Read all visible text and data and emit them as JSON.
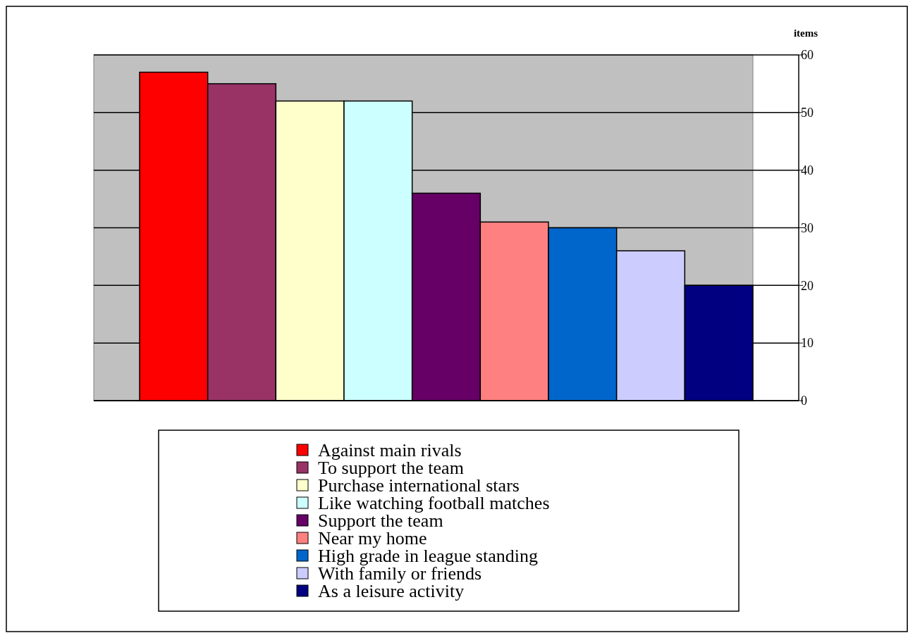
{
  "chart_data": {
    "type": "bar",
    "ylabel": "items",
    "categories": [
      null
    ],
    "series": [
      {
        "name": "Against main rivals",
        "color": "#ff0000",
        "values": [
          57
        ]
      },
      {
        "name": "To support the team",
        "color": "#993366",
        "values": [
          55
        ]
      },
      {
        "name": "Purchase international stars",
        "color": "#ffffcc",
        "values": [
          52
        ]
      },
      {
        "name": "Like watching football matches",
        "color": "#ccffff",
        "values": [
          52
        ]
      },
      {
        "name": "Support the team",
        "color": "#660066",
        "values": [
          36
        ]
      },
      {
        "name": "Near my home",
        "color": "#ff8080",
        "values": [
          31
        ]
      },
      {
        "name": "High grade in league standing",
        "color": "#0066cc",
        "values": [
          30
        ]
      },
      {
        "name": "With family or friends",
        "color": "#ccccff",
        "values": [
          26
        ]
      },
      {
        "name": "As a leisure activity",
        "color": "#000080",
        "values": [
          20
        ]
      }
    ],
    "ylim": [
      0,
      60
    ],
    "yticks": [
      0,
      10,
      20,
      30,
      40,
      50,
      60
    ],
    "grid": "y",
    "legend": "bottom",
    "tick_labels": "y"
  }
}
